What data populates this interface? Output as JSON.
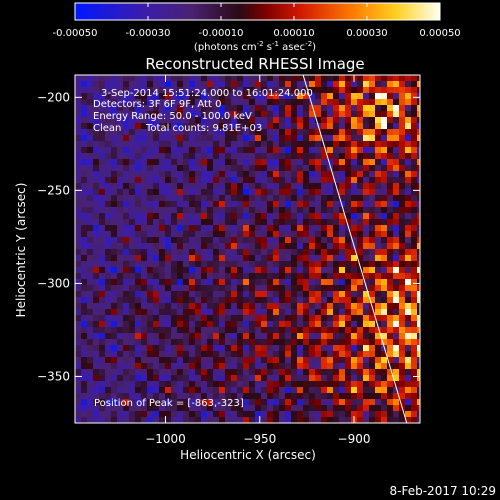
{
  "chart_data": {
    "type": "heatmap",
    "title": "Reconstructed RHESSI Image",
    "colorbar": {
      "min": -0.0005,
      "max": 0.0005,
      "ticks": [
        "-0.00050",
        "-0.00030",
        "-0.00010",
        "0.00010",
        "0.00030",
        "0.00050"
      ],
      "unit_label_parts": [
        "(photons cm",
        "-2",
        " s",
        "-1",
        " asec",
        "-2",
        ")"
      ],
      "colormap": "blue-purple-red-yellow-white"
    },
    "annotations": {
      "time_range": "3-Sep-2014 15:51:24.000 to 16:01:24.000",
      "detectors": "Detectors: 3F 6F 9F, Att 0",
      "energy": "Energy Range: 50.0 - 100.0 keV",
      "clean": "Clean",
      "total_counts": "Total counts: 9.81E+03",
      "peak": "Position of Peak = [-863,-323]"
    },
    "xlabel": "Heliocentric X (arcsec)",
    "ylabel": "Heliocentric Y (arcsec)",
    "xlim": [
      -1048,
      -865
    ],
    "ylim": [
      -375,
      -188
    ],
    "x_ticks": [
      -1000,
      -950,
      -900
    ],
    "x_tick_labels": [
      "−1000",
      "−950",
      "−900"
    ],
    "y_ticks": [
      -200,
      -250,
      -300,
      -350
    ],
    "y_tick_labels": [
      "−200",
      "−250",
      "−300",
      "−350"
    ],
    "limb_line": [
      [
        -927,
        -188
      ],
      [
        -872,
        -375
      ]
    ],
    "peak_position": [
      -863,
      -323
    ]
  },
  "footer": {
    "date": "8-Feb-2017 10:29"
  }
}
